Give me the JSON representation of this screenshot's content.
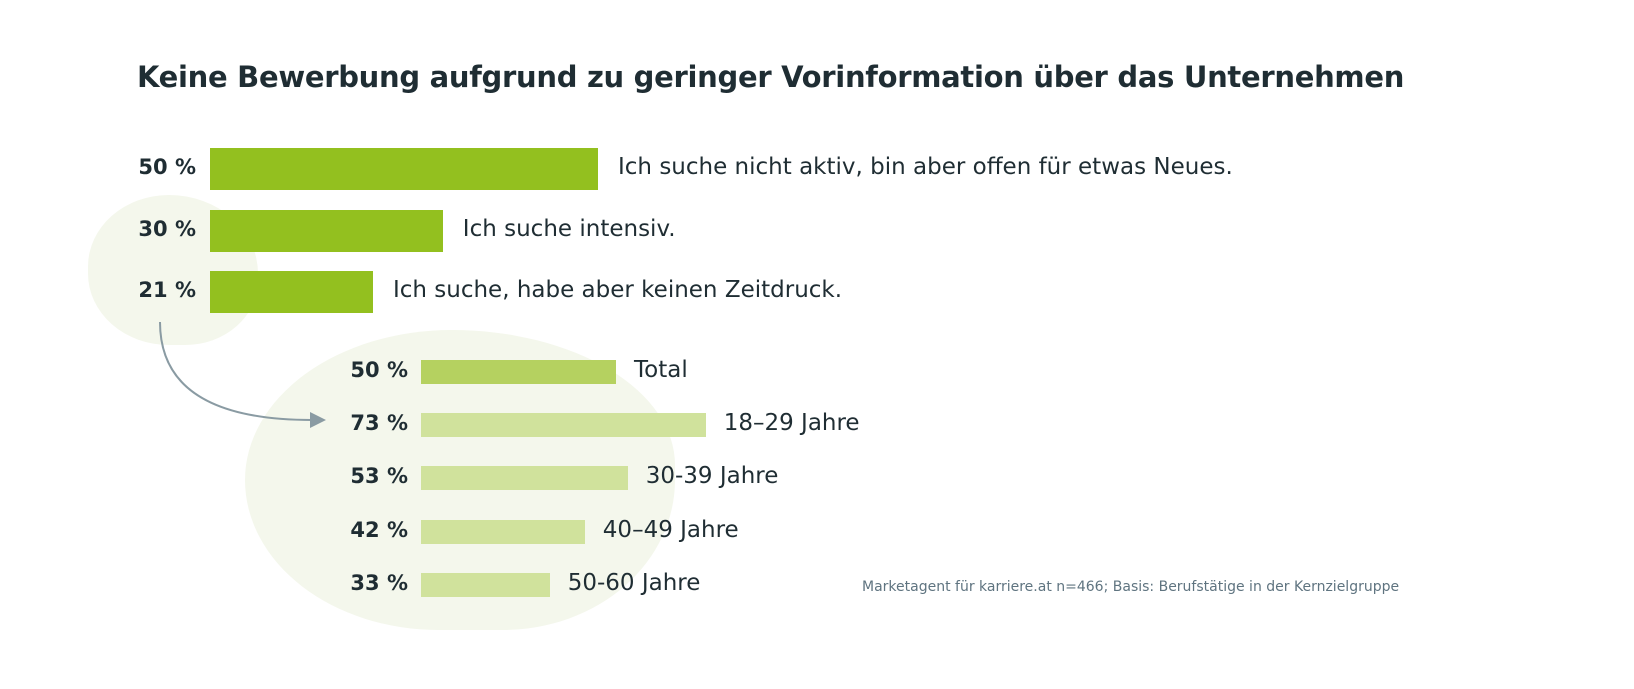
{
  "chart_data": [
    {
      "type": "bar",
      "orientation": "horizontal",
      "title": "Keine Bewerbung aufgrund zu geringer Vorinformation über das Unternehmen",
      "categories": [
        "Ich suche nicht aktiv, bin aber offen für etwas Neues.",
        "Ich suche intensiv.",
        "Ich suche, habe aber keinen Zeitdruck."
      ],
      "values": [
        50,
        30,
        21
      ],
      "value_labels": [
        "50 %",
        "30 %",
        "21 %"
      ],
      "colors": [
        "#93c01f",
        "#93c01f",
        "#93c01f"
      ],
      "grid": false
    },
    {
      "type": "bar",
      "orientation": "horizontal",
      "categories": [
        "Total",
        "18–29 Jahre",
        "30-39 Jahre",
        "40–49 Jahre",
        "50-60 Jahre"
      ],
      "values": [
        50,
        73,
        53,
        42,
        33
      ],
      "value_labels": [
        "50 %",
        "73 %",
        "53 %",
        "42 %",
        "33 %"
      ],
      "colors": [
        "#b5d160",
        "#d0e29c",
        "#d0e29c",
        "#d0e29c",
        "#d0e29c"
      ],
      "grid": false
    }
  ],
  "source": "Marketagent für karriere.at n=466; Basis: Berufstätige in der Kernzielgruppe",
  "colors": {
    "text": "#1f2d33",
    "background_shape": "#f4f7ec",
    "arrow": "#8a9ba3",
    "source_text": "#5f7480"
  }
}
